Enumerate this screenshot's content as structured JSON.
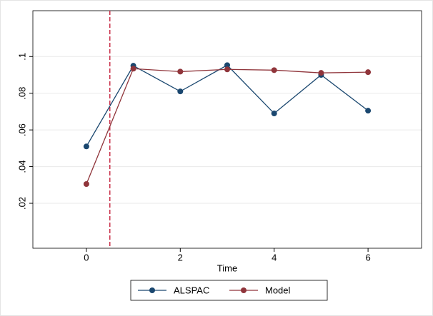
{
  "chart_data": {
    "type": "line",
    "x": [
      0,
      1,
      2,
      3,
      4,
      5,
      6
    ],
    "series": [
      {
        "name": "ALSPAC",
        "color": "#1a476f",
        "values": [
          0.051,
          0.095,
          0.081,
          0.0953,
          0.069,
          0.09,
          0.0705
        ]
      },
      {
        "name": "Model",
        "color": "#90353b",
        "values": [
          0.0305,
          0.0934,
          0.0918,
          0.093,
          0.0926,
          0.0911,
          0.0915
        ]
      }
    ],
    "x_label": "Time",
    "xlim": [
      -1.14,
      7.14
    ],
    "xticks": [
      0,
      2,
      4,
      6
    ],
    "ylim": [
      -0.0045,
      0.125
    ],
    "yticks": [
      {
        "value": 0.02,
        "label": ".02"
      },
      {
        "value": 0.04,
        "label": ".04"
      },
      {
        "value": 0.06,
        "label": ".06"
      },
      {
        "value": 0.08,
        "label": ".08"
      },
      {
        "value": 0.1,
        "label": ".1"
      }
    ],
    "xline": 0.5,
    "xline_color": "#c9304a",
    "grid": true,
    "legend": "bottom"
  }
}
